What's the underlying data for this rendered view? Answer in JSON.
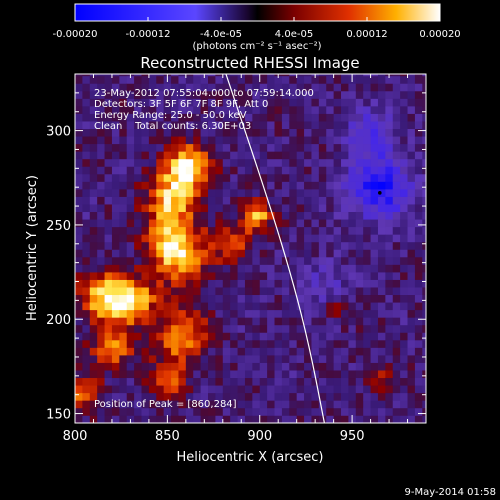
{
  "chart_data": {
    "type": "heatmap",
    "title": "Reconstructed RHESSI Image",
    "xlabel": "Heliocentric X (arcsec)",
    "ylabel": "Heliocentric Y (arcsec)",
    "xlim": [
      800,
      990
    ],
    "ylim": [
      145,
      330
    ],
    "x_ticks": [
      "800",
      "850",
      "900",
      "950"
    ],
    "y_ticks": [
      "150",
      "200",
      "250",
      "300"
    ],
    "colorbar": {
      "range": [
        -0.0002,
        0.0002
      ],
      "tick_labels": [
        "-0.00020",
        "-0.00012",
        "-4.0e-05",
        "4.0e-05",
        "0.00012",
        "0.00020"
      ],
      "units_label": "(photons cm⁻² s⁻¹ asec⁻²)"
    },
    "info_lines": [
      "23-May-2012 07:55:04.000 to 07:59:14.000",
      "Detectors: 3F 5F 6F 7F 8F 9F, Att 0",
      "Energy Range: 25.0 - 50.0 keV",
      "Clean    Total counts: 6.30E+03"
    ],
    "peak_label": "Position of Peak = [860,284]",
    "peak_position": [
      860,
      284
    ],
    "limb_curve": [
      [
        880,
        335
      ],
      [
        905,
        262
      ],
      [
        918,
        220
      ],
      [
        927,
        185
      ],
      [
        935,
        145
      ]
    ],
    "bright_sources": [
      {
        "x": 862,
        "y": 281,
        "sigma": 8,
        "amp": 1.0
      },
      {
        "x": 852,
        "y": 265,
        "sigma": 10,
        "amp": 0.75
      },
      {
        "x": 858,
        "y": 232,
        "sigma": 11,
        "amp": 0.7
      },
      {
        "x": 850,
        "y": 245,
        "sigma": 9,
        "amp": 0.55
      },
      {
        "x": 898,
        "y": 255,
        "sigma": 6,
        "amp": 0.8
      },
      {
        "x": 885,
        "y": 240,
        "sigma": 7,
        "amp": 0.45
      },
      {
        "x": 815,
        "y": 212,
        "sigma": 9,
        "amp": 0.85
      },
      {
        "x": 832,
        "y": 210,
        "sigma": 9,
        "amp": 0.75
      },
      {
        "x": 858,
        "y": 192,
        "sigma": 9,
        "amp": 0.75
      },
      {
        "x": 820,
        "y": 185,
        "sigma": 8,
        "amp": 0.6
      },
      {
        "x": 850,
        "y": 168,
        "sigma": 8,
        "amp": 0.5
      },
      {
        "x": 805,
        "y": 160,
        "sigma": 7,
        "amp": 0.5
      },
      {
        "x": 965,
        "y": 168,
        "sigma": 5,
        "amp": 0.4
      },
      {
        "x": 942,
        "y": 205,
        "sigma": 4,
        "amp": 0.35
      }
    ],
    "negative_sources": [
      {
        "x": 965,
        "y": 270,
        "sigma": 12,
        "amp": 0.85
      },
      {
        "x": 960,
        "y": 300,
        "sigma": 9,
        "amp": 0.5
      },
      {
        "x": 935,
        "y": 220,
        "sigma": 9,
        "amp": 0.3
      }
    ]
  },
  "footer_timestamp": "9-May-2014 01:58"
}
